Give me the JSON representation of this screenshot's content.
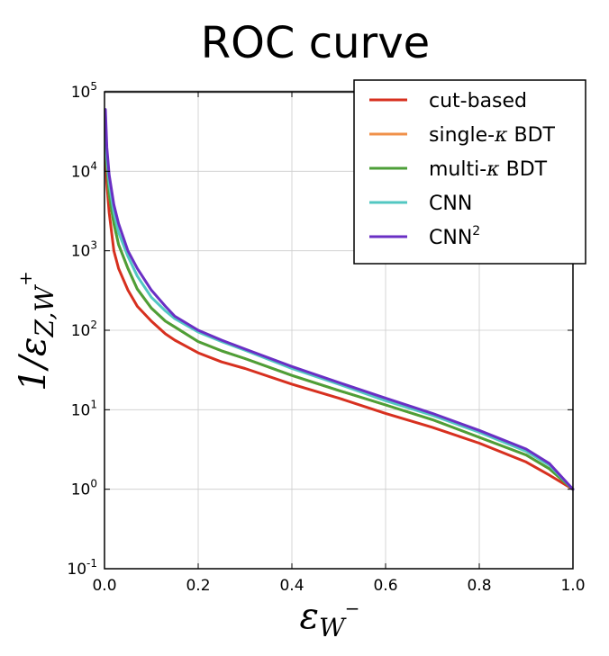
{
  "chart_data": {
    "type": "line",
    "title": "ROC curve",
    "xlabel": {
      "main": "ε",
      "sub": "W",
      "sup": "−"
    },
    "ylabel": {
      "prefix": "1/ε",
      "sub": "Z,W",
      "sup": "+"
    },
    "xlim": [
      0.0,
      1.0
    ],
    "ylim": [
      0.1,
      100000
    ],
    "yscale": "log",
    "grid": true,
    "legend_position": "top-right",
    "x_ticks": [
      {
        "value": 0.0,
        "label": "0.0"
      },
      {
        "value": 0.2,
        "label": "0.2"
      },
      {
        "value": 0.4,
        "label": "0.4"
      },
      {
        "value": 0.6,
        "label": "0.6"
      },
      {
        "value": 0.8,
        "label": "0.8"
      },
      {
        "value": 1.0,
        "label": "1.0"
      }
    ],
    "y_ticks": [
      {
        "value": 0.1,
        "base": "10",
        "exp": "-1"
      },
      {
        "value": 1,
        "base": "10",
        "exp": "0"
      },
      {
        "value": 10,
        "base": "10",
        "exp": "1"
      },
      {
        "value": 100,
        "base": "10",
        "exp": "2"
      },
      {
        "value": 1000,
        "base": "10",
        "exp": "3"
      },
      {
        "value": 10000,
        "base": "10",
        "exp": "4"
      },
      {
        "value": 100000,
        "base": "10",
        "exp": "5"
      }
    ],
    "reference_line": {
      "y": 100000,
      "color": "#aaaaaa"
    },
    "series": [
      {
        "name": "cut-based",
        "color": "#d7301f",
        "legend_label": "cut-based",
        "x": [
          0.002,
          0.005,
          0.01,
          0.02,
          0.03,
          0.05,
          0.07,
          0.1,
          0.13,
          0.15,
          0.2,
          0.25,
          0.3,
          0.4,
          0.5,
          0.6,
          0.7,
          0.8,
          0.9,
          0.95,
          1.0
        ],
        "y": [
          20000,
          7000,
          3000,
          1000,
          600,
          320,
          200,
          130,
          90,
          75,
          52,
          40,
          33,
          21,
          14,
          9,
          6,
          3.8,
          2.2,
          1.5,
          1.0
        ]
      },
      {
        "name": "single-κ BDT",
        "color": "#f0914a",
        "legend_label": {
          "pre": "single-",
          "sym": "κ",
          "post": " BDT"
        },
        "x": [
          0.002,
          0.005,
          0.01,
          0.02,
          0.03,
          0.05,
          0.07,
          0.1,
          0.13,
          0.15,
          0.2,
          0.25,
          0.3,
          0.4,
          0.5,
          0.6,
          0.7,
          0.8,
          0.9,
          0.95,
          1.0
        ],
        "y": [
          40000,
          12000,
          5000,
          2200,
          1200,
          600,
          330,
          190,
          130,
          110,
          72,
          55,
          44,
          27,
          17.5,
          11.5,
          7.5,
          4.5,
          2.7,
          1.8,
          1.0
        ]
      },
      {
        "name": "multi-κ BDT",
        "color": "#4d9f38",
        "legend_label": {
          "pre": "multi-",
          "sym": "κ",
          "post": " BDT"
        },
        "x": [
          0.002,
          0.005,
          0.01,
          0.02,
          0.03,
          0.05,
          0.07,
          0.1,
          0.13,
          0.15,
          0.2,
          0.25,
          0.3,
          0.4,
          0.5,
          0.6,
          0.7,
          0.8,
          0.9,
          0.95,
          1.0
        ],
        "y": [
          40000,
          12000,
          5000,
          2200,
          1200,
          600,
          330,
          190,
          130,
          110,
          72,
          55,
          44,
          27,
          17.5,
          11.5,
          7.5,
          4.5,
          2.7,
          1.8,
          1.0
        ]
      },
      {
        "name": "CNN",
        "color": "#52c7c2",
        "legend_label": "CNN",
        "x": [
          0.002,
          0.005,
          0.01,
          0.02,
          0.03,
          0.05,
          0.07,
          0.1,
          0.13,
          0.15,
          0.2,
          0.25,
          0.3,
          0.4,
          0.5,
          0.6,
          0.7,
          0.8,
          0.9,
          0.95,
          1.0
        ],
        "y": [
          50000,
          15000,
          7000,
          3000,
          1700,
          850,
          480,
          260,
          175,
          140,
          95,
          72,
          56,
          33,
          21,
          13,
          8.5,
          5.2,
          3.0,
          2.0,
          1.0
        ]
      },
      {
        "name": "CNN2",
        "color": "#6a2fc4",
        "legend_label": {
          "pre": "CNN",
          "sup": "2"
        },
        "x": [
          0.002,
          0.005,
          0.01,
          0.02,
          0.03,
          0.05,
          0.07,
          0.1,
          0.13,
          0.15,
          0.2,
          0.25,
          0.3,
          0.4,
          0.5,
          0.6,
          0.7,
          0.8,
          0.9,
          0.95,
          1.0
        ],
        "y": [
          60000,
          20000,
          9000,
          3800,
          2200,
          1000,
          600,
          320,
          200,
          150,
          100,
          75,
          58,
          35,
          22,
          14,
          9,
          5.5,
          3.2,
          2.1,
          1.0
        ]
      }
    ]
  }
}
